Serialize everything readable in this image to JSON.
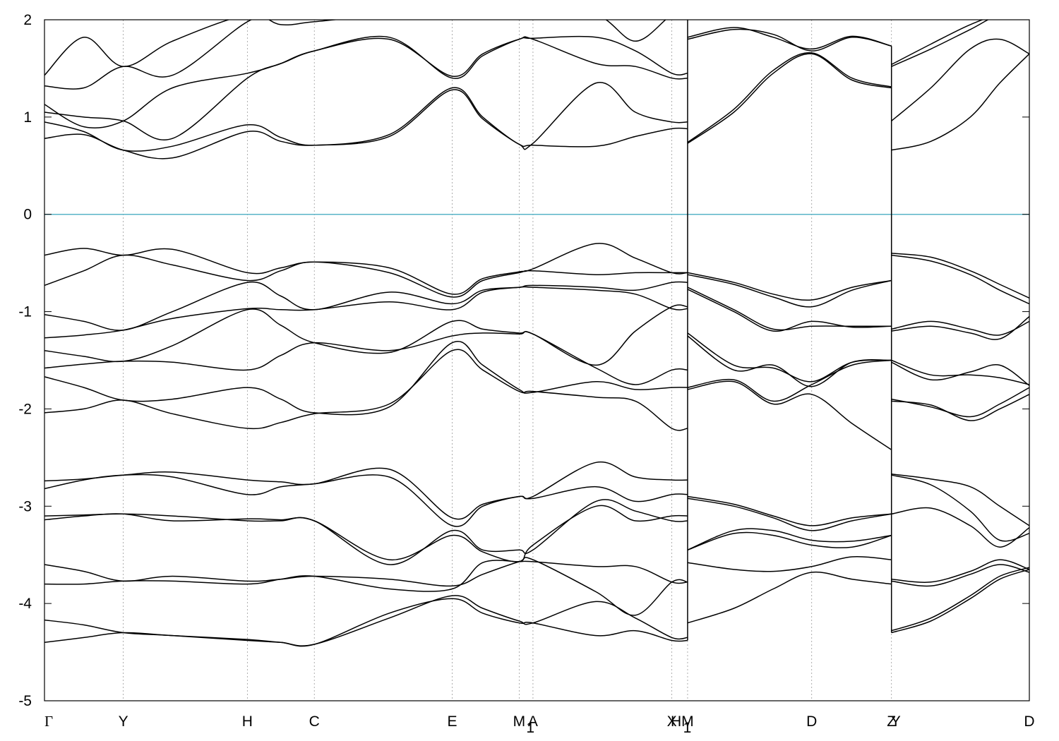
{
  "chart_data": {
    "type": "line",
    "title": "",
    "xlabel": "",
    "ylabel": "",
    "ylim": [
      -5,
      2
    ],
    "yticks": [
      2,
      1,
      0,
      -1,
      -2,
      -3,
      -4,
      -5
    ],
    "fermi_level": 0,
    "fermi_color": "#5ab4c8",
    "line_color": "#000000",
    "grid": "vertical dotted at k-points",
    "kpoints": [
      {
        "label": "Γ",
        "x": 0
      },
      {
        "label": "Y",
        "x": 0.08
      },
      {
        "label": "H",
        "x": 0.206
      },
      {
        "label": "C",
        "x": 0.274
      },
      {
        "label": "E",
        "x": 0.414
      },
      {
        "label": "M",
        "x": 0.482,
        "sub": "1"
      },
      {
        "label": "A",
        "x": 0.496
      },
      {
        "label": "X",
        "x": 0.637
      },
      {
        "label": "H",
        "x": 0.637,
        "sub": "1"
      },
      {
        "label": "M",
        "x": 0.653
      },
      {
        "label": "D",
        "x": 0.779
      },
      {
        "label": "Z",
        "x": 0.86
      },
      {
        "label": "Y",
        "x": 0.86
      },
      {
        "label": "D",
        "x": 1.0
      }
    ],
    "breaks": [
      0.653,
      0.86
    ],
    "segments": [
      {
        "x": [
          0,
          0.04,
          0.08,
          0.13,
          0.206,
          0.24,
          0.274,
          0.35,
          0.414,
          0.445,
          0.482,
          0.496,
          0.56,
          0.6,
          0.637,
          0.653
        ],
        "bands": [
          [
            -4.4,
            -4.35,
            -4.3,
            -4.33,
            -4.37,
            -4.4,
            -4.42,
            -4.1,
            -3.95,
            -4.1,
            -4.2,
            -4.2,
            -4.33,
            -4.28,
            -4.38,
            -4.38
          ],
          [
            -4.17,
            -4.22,
            -4.3,
            -4.33,
            -4.38,
            -4.4,
            -4.42,
            -4.15,
            -3.92,
            -4.05,
            -4.18,
            -4.2,
            -3.98,
            -4.15,
            -4.35,
            -4.35
          ],
          [
            -3.8,
            -3.8,
            -3.77,
            -3.77,
            -3.8,
            -3.75,
            -3.72,
            -3.85,
            -3.85,
            -3.58,
            -3.57,
            -3.57,
            -3.62,
            -3.62,
            -3.78,
            -3.78
          ],
          [
            -3.6,
            -3.67,
            -3.77,
            -3.72,
            -3.77,
            -3.75,
            -3.72,
            -3.75,
            -3.82,
            -3.7,
            -3.57,
            -3.55,
            -3.88,
            -4.12,
            -3.78,
            -3.78
          ],
          [
            -3.14,
            -3.1,
            -3.08,
            -3.15,
            -3.13,
            -3.14,
            -3.15,
            -3.55,
            -3.3,
            -3.47,
            -3.57,
            -3.4,
            -3.0,
            -3.15,
            -3.1,
            -3.1
          ],
          [
            -3.1,
            -3.09,
            -3.08,
            -3.1,
            -3.15,
            -3.15,
            -3.15,
            -3.6,
            -3.25,
            -3.45,
            -3.45,
            -3.45,
            -2.95,
            -3.05,
            -3.15,
            -3.15
          ],
          [
            -2.82,
            -2.73,
            -2.68,
            -2.7,
            -2.88,
            -2.8,
            -2.77,
            -2.7,
            -3.2,
            -3.0,
            -2.9,
            -2.92,
            -2.8,
            -2.95,
            -2.88,
            -2.88
          ],
          [
            -2.74,
            -2.72,
            -2.68,
            -2.65,
            -2.73,
            -2.75,
            -2.77,
            -2.62,
            -3.12,
            -2.98,
            -2.9,
            -2.9,
            -2.55,
            -2.7,
            -2.73,
            -2.73
          ],
          [
            -2.04,
            -2.0,
            -1.91,
            -2.05,
            -2.2,
            -2.14,
            -2.05,
            -1.95,
            -1.4,
            -1.6,
            -1.82,
            -1.82,
            -1.88,
            -1.92,
            -2.2,
            -2.2
          ],
          [
            -1.67,
            -1.78,
            -1.91,
            -1.9,
            -1.78,
            -1.9,
            -2.04,
            -1.98,
            -1.32,
            -1.55,
            -1.8,
            -1.83,
            -1.72,
            -1.8,
            -1.78,
            -1.78
          ],
          [
            -1.58,
            -1.54,
            -1.51,
            -1.52,
            -1.6,
            -1.45,
            -1.32,
            -1.4,
            -1.25,
            -1.22,
            -1.23,
            -1.23,
            -1.58,
            -1.75,
            -1.6,
            -1.6
          ],
          [
            -1.4,
            -1.46,
            -1.51,
            -1.35,
            -0.98,
            -1.14,
            -1.32,
            -1.42,
            -1.1,
            -1.18,
            -1.22,
            -1.23,
            -1.55,
            -1.2,
            -0.95,
            -0.95
          ],
          [
            -1.27,
            -1.24,
            -1.19,
            -1.07,
            -0.97,
            -0.98,
            -0.98,
            -0.9,
            -0.98,
            -0.8,
            -0.75,
            -0.75,
            -0.78,
            -0.82,
            -0.97,
            -0.97
          ],
          [
            -1.03,
            -1.1,
            -1.19,
            -1.0,
            -0.7,
            -0.84,
            -0.98,
            -0.8,
            -0.92,
            -0.78,
            -0.75,
            -0.73,
            -0.75,
            -0.78,
            -0.7,
            -0.7
          ],
          [
            -0.73,
            -0.58,
            -0.42,
            -0.52,
            -0.68,
            -0.58,
            -0.49,
            -0.6,
            -0.85,
            -0.68,
            -0.6,
            -0.58,
            -0.62,
            -0.6,
            -0.6,
            -0.6
          ],
          [
            -0.42,
            -0.35,
            -0.42,
            -0.36,
            -0.6,
            -0.55,
            -0.49,
            -0.55,
            -0.82,
            -0.66,
            -0.59,
            -0.56,
            -0.3,
            -0.45,
            -0.6,
            -0.6
          ],
          [
            0.78,
            0.82,
            0.66,
            0.58,
            0.85,
            0.75,
            0.71,
            0.8,
            1.28,
            0.98,
            0.72,
            0.71,
            0.7,
            0.8,
            0.88,
            0.88
          ],
          [
            0.95,
            0.85,
            0.66,
            0.7,
            0.92,
            0.79,
            0.71,
            0.82,
            1.3,
            1.0,
            0.72,
            0.73,
            1.35,
            1.05,
            0.95,
            0.95
          ],
          [
            1.05,
            1.0,
            0.96,
            0.78,
            1.4,
            1.55,
            1.68,
            1.8,
            1.42,
            1.65,
            1.8,
            1.8,
            1.55,
            1.52,
            1.4,
            1.4
          ],
          [
            1.13,
            0.9,
            0.96,
            1.3,
            1.45,
            1.55,
            1.68,
            1.82,
            1.4,
            1.63,
            1.8,
            1.81,
            1.82,
            1.68,
            1.45,
            1.45
          ],
          [
            1.32,
            1.3,
            1.52,
            1.43,
            1.98,
            2.05,
            2.05,
            2.05,
            2.05,
            2.05,
            2.05,
            2.05,
            2.05,
            2.05,
            2.05,
            2.05
          ],
          [
            1.43,
            1.82,
            1.52,
            1.78,
            2.05,
            1.95,
            1.98,
            2.05,
            2.05,
            2.05,
            2.05,
            2.05,
            2.05,
            1.78,
            2.05,
            2.05
          ]
        ]
      },
      {
        "x": [
          0.653,
          0.7,
          0.74,
          0.779,
          0.82,
          0.86
        ],
        "bands": [
          [
            -4.2,
            -4.05,
            -3.85,
            -3.68,
            -3.75,
            -3.8
          ],
          [
            -3.58,
            -3.65,
            -3.67,
            -3.62,
            -3.52,
            -3.55
          ],
          [
            -3.45,
            -3.28,
            -3.3,
            -3.4,
            -3.42,
            -3.3
          ],
          [
            -3.45,
            -3.25,
            -3.25,
            -3.35,
            -3.36,
            -3.3
          ],
          [
            -2.92,
            -3.0,
            -3.12,
            -3.25,
            -3.15,
            -3.08
          ],
          [
            -2.9,
            -2.98,
            -3.1,
            -3.2,
            -3.12,
            -3.08
          ],
          [
            -1.8,
            -1.72,
            -1.95,
            -1.85,
            -2.15,
            -2.42
          ],
          [
            -1.78,
            -1.7,
            -1.92,
            -1.75,
            -1.55,
            -1.5
          ],
          [
            -1.25,
            -1.6,
            -1.55,
            -1.77,
            -1.52,
            -1.5
          ],
          [
            -1.22,
            -1.55,
            -1.58,
            -1.72,
            -1.52,
            -1.5
          ],
          [
            -0.77,
            -1.0,
            -1.2,
            -1.1,
            -1.16,
            -1.15
          ],
          [
            -0.75,
            -0.98,
            -1.18,
            -1.15,
            -1.15,
            -1.15
          ],
          [
            -0.62,
            -0.72,
            -0.85,
            -0.95,
            -0.78,
            -0.68
          ],
          [
            -0.6,
            -0.7,
            -0.82,
            -0.88,
            -0.75,
            -0.68
          ],
          [
            0.73,
            1.05,
            1.45,
            1.65,
            1.38,
            1.3
          ],
          [
            0.74,
            1.08,
            1.48,
            1.66,
            1.4,
            1.31
          ],
          [
            1.8,
            1.9,
            1.85,
            1.68,
            1.82,
            1.73
          ],
          [
            1.82,
            1.92,
            1.82,
            1.7,
            1.83,
            1.73
          ]
        ]
      },
      {
        "x": [
          0.86,
          0.9,
          0.94,
          0.97,
          1.0
        ],
        "bands": [
          [
            -4.3,
            -4.18,
            -3.95,
            -3.75,
            -3.65
          ],
          [
            -4.28,
            -4.15,
            -3.92,
            -3.72,
            -3.63
          ],
          [
            -3.77,
            -3.82,
            -3.7,
            -3.6,
            -3.68
          ],
          [
            -3.75,
            -3.78,
            -3.67,
            -3.55,
            -3.65
          ],
          [
            -3.08,
            -3.02,
            -3.2,
            -3.42,
            -3.22
          ],
          [
            -2.68,
            -2.78,
            -3.05,
            -3.35,
            -3.28
          ],
          [
            -2.67,
            -2.72,
            -2.8,
            -3.0,
            -3.2
          ],
          [
            -1.9,
            -1.98,
            -2.08,
            -1.95,
            -1.78
          ],
          [
            -1.92,
            -1.96,
            -2.12,
            -2.0,
            -1.85
          ],
          [
            -1.52,
            -1.7,
            -1.62,
            -1.55,
            -1.76
          ],
          [
            -1.5,
            -1.65,
            -1.65,
            -1.68,
            -1.75
          ],
          [
            -1.2,
            -1.15,
            -1.22,
            -1.28,
            -1.05
          ],
          [
            -1.18,
            -1.1,
            -1.18,
            -1.24,
            -1.1
          ],
          [
            -0.42,
            -0.48,
            -0.62,
            -0.78,
            -0.92
          ],
          [
            -0.4,
            -0.44,
            -0.58,
            -0.72,
            -0.86
          ],
          [
            0.66,
            0.75,
            1.0,
            1.35,
            1.65
          ],
          [
            0.96,
            1.3,
            1.7,
            1.8,
            1.65
          ],
          [
            1.52,
            1.7,
            1.9,
            2.05,
            2.05
          ],
          [
            1.54,
            1.75,
            1.95,
            2.05,
            2.05
          ]
        ]
      }
    ]
  }
}
